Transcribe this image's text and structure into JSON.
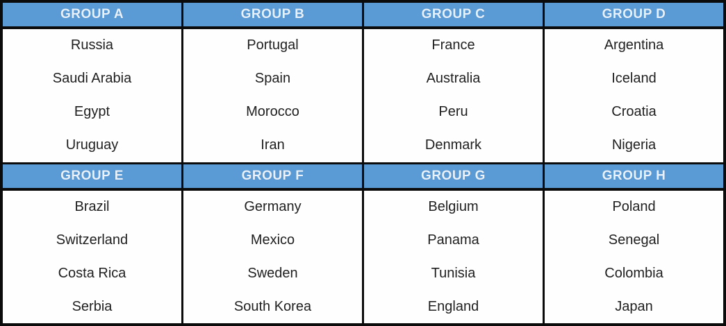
{
  "colors": {
    "header_bg": "#5b9bd5",
    "header_text": "#e9f2fb",
    "border": "#0b0b0b",
    "cell_bg": "#fefefe",
    "team_text": "#1f1f1f"
  },
  "groups": [
    {
      "name": "GROUP A",
      "teams": [
        "Russia",
        "Saudi Arabia",
        "Egypt",
        "Uruguay"
      ]
    },
    {
      "name": "GROUP B",
      "teams": [
        "Portugal",
        "Spain",
        "Morocco",
        "Iran"
      ]
    },
    {
      "name": "GROUP C",
      "teams": [
        "France",
        "Australia",
        "Peru",
        "Denmark"
      ]
    },
    {
      "name": "GROUP D",
      "teams": [
        "Argentina",
        "Iceland",
        "Croatia",
        "Nigeria"
      ]
    },
    {
      "name": "GROUP E",
      "teams": [
        "Brazil",
        "Switzerland",
        "Costa Rica",
        "Serbia"
      ]
    },
    {
      "name": "GROUP F",
      "teams": [
        "Germany",
        "Mexico",
        "Sweden",
        "South Korea"
      ]
    },
    {
      "name": "GROUP G",
      "teams": [
        "Belgium",
        "Panama",
        "Tunisia",
        "England"
      ]
    },
    {
      "name": "GROUP H",
      "teams": [
        "Poland",
        "Senegal",
        "Colombia",
        "Japan"
      ]
    }
  ]
}
